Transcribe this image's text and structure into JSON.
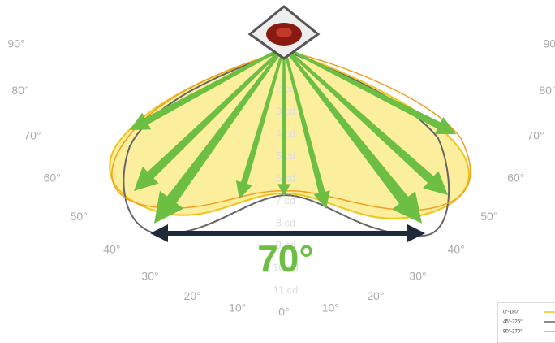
{
  "angle_labels_left": [
    "0°",
    "10°",
    "20°",
    "30°",
    "40°",
    "50°",
    "60°",
    "70°",
    "80°",
    "90°"
  ],
  "angle_labels_right": [
    "10°",
    "20°",
    "30°",
    "40°",
    "50°",
    "60°",
    "70°",
    "80°",
    "90°"
  ],
  "intensity_labels": [
    "2 cd",
    "3 cd",
    "4 cd",
    "5 cd",
    "6 cd",
    "7 cd",
    "8 cd",
    "9 cd",
    "10 cd",
    "11 cd"
  ],
  "beam_angle": "70°",
  "legend": [
    "0°-180°",
    "45°-225°",
    "90°-270°"
  ]
}
